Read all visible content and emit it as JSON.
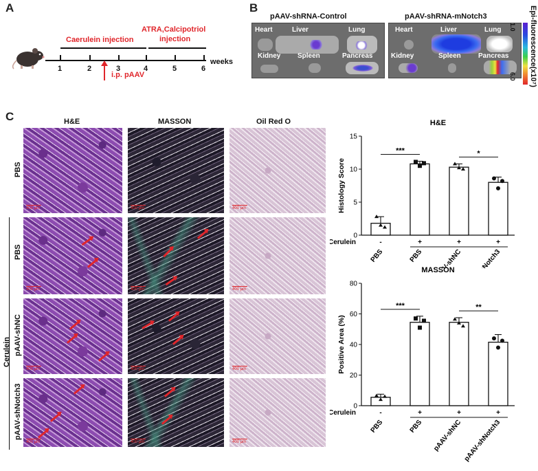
{
  "panel_a": {
    "letter": "A",
    "phase1": "Caerulein injection",
    "phase2_line1": "ATRA,Calcipotriol",
    "phase2_line2": "injection",
    "ticks": [
      "1",
      "2",
      "3",
      "4",
      "5",
      "6"
    ],
    "axis_unit": "weeks",
    "injection_label": "i.p.  pAAV"
  },
  "panel_b": {
    "letter": "B",
    "groups": [
      "pAAV-shRNA-Control",
      "pAAV-shRNA-mNotch3"
    ],
    "organs_top": [
      "Heart",
      "Liver",
      "Lung"
    ],
    "organs_bottom": [
      "Kidney",
      "Spleen",
      "Pancreas"
    ],
    "colorbar_title": "Epi-fluorescence(x10⁷)",
    "colorbar_max": "1.0",
    "colorbar_min": "6.0"
  },
  "panel_c": {
    "letter": "C",
    "stains": [
      "H&E",
      "MASSON",
      "Oil Red O"
    ],
    "row_labels": [
      "PBS",
      "PBS",
      "pAAV-shNC",
      "pAAV-shNotch3"
    ],
    "group_label": "Cerulein",
    "scale_bar": "400 μm"
  },
  "chart_data": [
    {
      "type": "bar",
      "title": "H&E",
      "ylabel": "Histology Score",
      "categories": [
        "PBS",
        "PBS",
        "pAAV-shNC",
        "pAAV-shNotch3"
      ],
      "treatment_label": "Cerulein",
      "treatment_signs": [
        "-",
        "+",
        "+",
        "+"
      ],
      "values": [
        1.8,
        10.8,
        10.3,
        8.0
      ],
      "errors": [
        1.0,
        0.4,
        0.5,
        0.8
      ],
      "points": [
        [
          2.8,
          1.5,
          1.2
        ],
        [
          11.1,
          10.5,
          10.9
        ],
        [
          10.8,
          10.2,
          10.0
        ],
        [
          8.6,
          7.1,
          8.2
        ]
      ],
      "ylim": [
        0,
        15
      ],
      "yticks": [
        "0",
        "5",
        "10",
        "15"
      ],
      "significance": [
        {
          "from": 0,
          "to": 1,
          "label": "***"
        },
        {
          "from": 2,
          "to": 3,
          "label": "*"
        }
      ]
    },
    {
      "type": "bar",
      "title": "MASSON",
      "ylabel": "Positive Area  (%)",
      "categories": [
        "PBS",
        "PBS",
        "pAAV-shNC",
        "pAAV-shNotch3"
      ],
      "treatment_label": "Cerulein",
      "treatment_signs": [
        "-",
        "+",
        "+",
        "+"
      ],
      "values": [
        5.5,
        54.5,
        54.5,
        41.5
      ],
      "errors": [
        2.0,
        4.0,
        3.0,
        5.0
      ],
      "points": [
        [
          6.5,
          4.0,
          6.0
        ],
        [
          57.0,
          51.0,
          55.5
        ],
        [
          56.5,
          54.0,
          52.0
        ],
        [
          44.0,
          38.0,
          42.5
        ]
      ],
      "ylim": [
        0,
        80
      ],
      "yticks": [
        "0",
        "20",
        "40",
        "60",
        "80"
      ],
      "significance": [
        {
          "from": 0,
          "to": 1,
          "label": "***"
        },
        {
          "from": 2,
          "to": 3,
          "label": "**"
        }
      ]
    }
  ]
}
